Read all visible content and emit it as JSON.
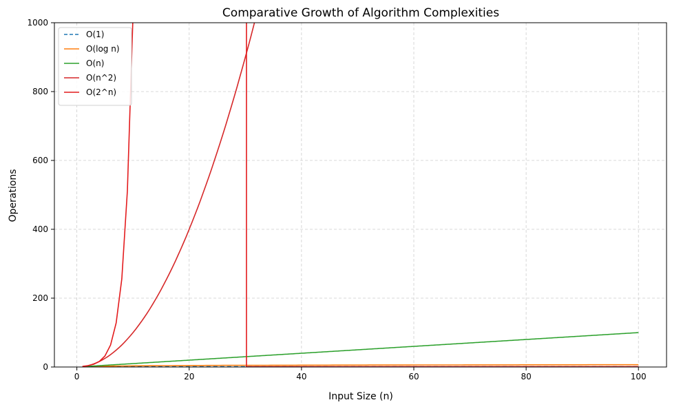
{
  "chart_data": {
    "type": "line",
    "title": "Comparative Growth of Algorithm Complexities",
    "xlabel": "Input Size (n)",
    "ylabel": "Operations",
    "xlim": [
      -4,
      105
    ],
    "ylim": [
      0,
      1000
    ],
    "x_ticks": [
      0,
      20,
      40,
      60,
      80,
      100
    ],
    "y_ticks": [
      0,
      200,
      400,
      600,
      800,
      1000
    ],
    "grid": true,
    "legend_position": "upper-left",
    "series": [
      {
        "name": "O(1)",
        "color": "#1f77b4",
        "dash": "dashed",
        "function": "constant",
        "x_range": [
          1,
          100
        ],
        "y_constant": 1
      },
      {
        "name": "O(log n)",
        "color": "#ff7f0e",
        "dash": "solid",
        "function": "log2",
        "x_range": [
          1,
          100
        ],
        "y_at_x100": 6.64
      },
      {
        "name": "O(n)",
        "color": "#2ca02c",
        "dash": "solid",
        "function": "linear",
        "x_range": [
          1,
          100
        ],
        "y_at_x100": 100
      },
      {
        "name": "O(n^2)",
        "color": "#d62728",
        "dash": "solid",
        "function": "quadratic",
        "x_range": [
          1,
          100
        ],
        "y_at_x30": 900
      },
      {
        "name": "O(2^n)",
        "color": "#e31a1c",
        "dash": "solid",
        "function": "exponential",
        "x": [
          1,
          2,
          3,
          4,
          5,
          6,
          7,
          8,
          9,
          10
        ],
        "y": [
          2,
          4,
          8,
          16,
          32,
          64,
          128,
          256,
          512,
          1024
        ],
        "vertical_segment_x": 30.2,
        "baseline_x_range": [
          30.2,
          100
        ]
      }
    ]
  }
}
